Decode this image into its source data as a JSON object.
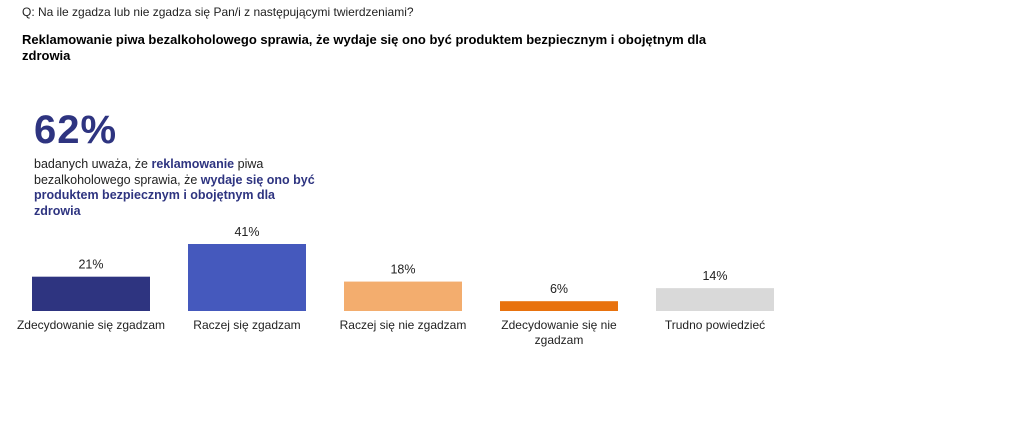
{
  "question": "Q: Na ile zgadza lub nie zgadza się Pan/i z następującymi twierdzeniami?",
  "title": "Reklamowanie piwa bezalkoholowego sprawia, że wydaje się ono być produktem bezpiecznym i obojętnym dla zdrowia",
  "callout": {
    "big_value": "62%",
    "text_1": "badanych uważa, że ",
    "highlight_1": "reklamowanie",
    "text_2": " piwa bezalkoholowego sprawia, że ",
    "highlight_2": "wydaje się ono być produktem bezpiecznym i obojętnym dla zdrowia",
    "highlight_color": "#2e3480"
  },
  "chart_data": {
    "type": "bar",
    "title": "Reklamowanie piwa bezalkoholowego sprawia, że wydaje się ono być produktem bezpiecznym i obojętnym dla zdrowia",
    "categories": [
      "Zdecydowanie się zgadzam",
      "Raczej się zgadzam",
      "Raczej się nie zgadzam",
      "Zdecydowanie się nie zgadzam",
      "Trudno powiedzieć"
    ],
    "category_lines": [
      [
        "Zdecydowanie się zgadzam"
      ],
      [
        "Raczej się zgadzam"
      ],
      [
        "Raczej się nie zgadzam"
      ],
      [
        "Zdecydowanie się nie",
        "zgadzam"
      ],
      [
        "Trudno powiedzieć"
      ]
    ],
    "values": [
      21,
      41,
      18,
      6,
      14
    ],
    "value_labels": [
      "21%",
      "41%",
      "18%",
      "6%",
      "14%"
    ],
    "colors": [
      "#2e3480",
      "#4559bd",
      "#f3ad6e",
      "#e8720e",
      "#d9d9d9"
    ],
    "ylim": [
      0,
      41
    ],
    "grid": false,
    "legend": "none",
    "xlabel": "",
    "ylabel": ""
  }
}
